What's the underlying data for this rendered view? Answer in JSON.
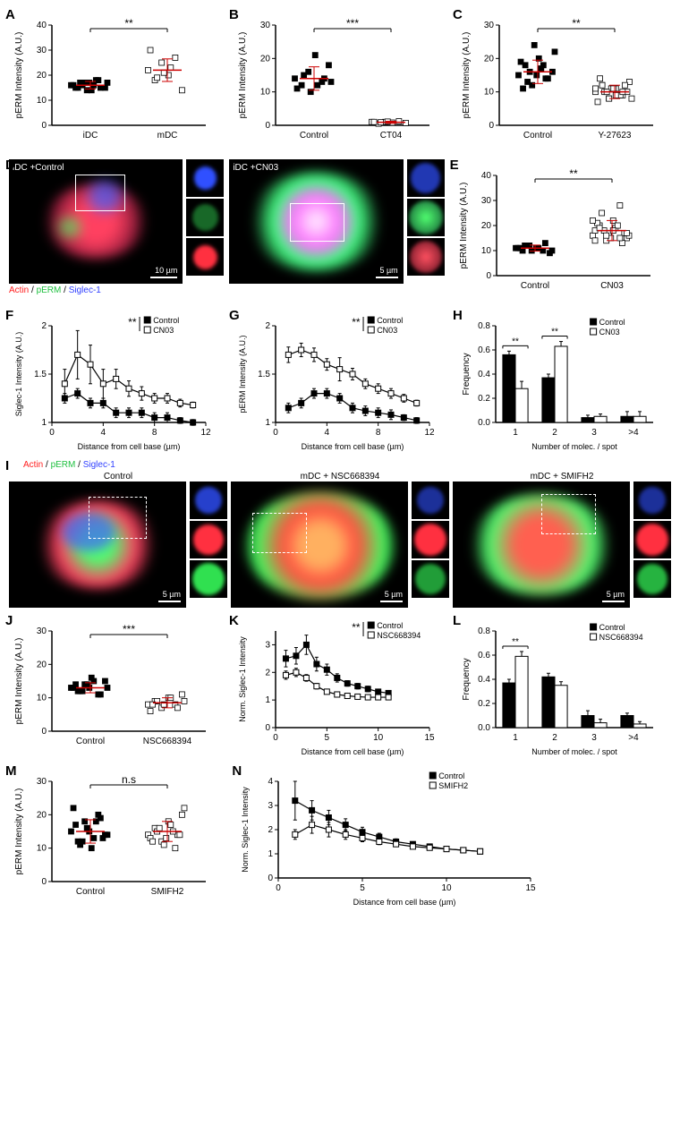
{
  "colors": {
    "actin": "#ff2020",
    "perm": "#20e040",
    "siglec": "#3040ff",
    "marker_filled": "#000000",
    "marker_open": "#ffffff",
    "errorbar": "#c00000",
    "axis": "#000000"
  },
  "panelA": {
    "label": "A",
    "ylabel": "pERM Intensity (A.U.)",
    "ylim": [
      0,
      40
    ],
    "ytick_step": 10,
    "sig": "**",
    "groups": [
      "iDC",
      "mDC"
    ],
    "data": [
      [
        16,
        15,
        17,
        14,
        18,
        15,
        16,
        17,
        14,
        16,
        15,
        17,
        15,
        16,
        17,
        18
      ],
      [
        22,
        18,
        25,
        20,
        27,
        14,
        30,
        19,
        21,
        23
      ]
    ],
    "means": [
      16,
      22
    ],
    "sds": [
      1.5,
      4.5
    ]
  },
  "panelB": {
    "label": "B",
    "ylabel": "pERM Intensity (A.U.)",
    "ylim": [
      0,
      30
    ],
    "ytick_step": 10,
    "sig": "***",
    "groups": [
      "Control",
      "CT04"
    ],
    "data": [
      [
        14,
        12,
        16,
        21,
        13,
        18,
        11,
        15,
        10,
        12,
        14,
        13
      ],
      [
        1,
        0.5,
        1,
        0.8,
        1.2,
        0.7,
        1,
        0.9,
        1.1
      ]
    ],
    "means": [
      14,
      0.9
    ],
    "sds": [
      3.5,
      0.3
    ]
  },
  "panelC": {
    "label": "C",
    "ylabel": "pERM Intensity (A.U.)",
    "ylim": [
      0,
      30
    ],
    "ytick_step": 10,
    "sig": "**",
    "groups": [
      "Control",
      "Y-27623"
    ],
    "data": [
      [
        15,
        18,
        12,
        20,
        14,
        16,
        19,
        13,
        24,
        17,
        14,
        22,
        11,
        16,
        15,
        18
      ],
      [
        10,
        12,
        8,
        11,
        9,
        13,
        7,
        10,
        11,
        9,
        12,
        8,
        14,
        10,
        11,
        9,
        10,
        11,
        12,
        8,
        9,
        10
      ]
    ],
    "means": [
      16,
      10
    ],
    "sds": [
      3.5,
      2
    ]
  },
  "panelD": {
    "label": "D",
    "channel_labels": [
      "Actin",
      "pERM",
      "Siglec-1"
    ],
    "images": [
      {
        "title": "iDC +Control",
        "scale": "10 µm"
      },
      {
        "title": "iDC +CN03",
        "scale": "5 µm"
      }
    ]
  },
  "panelE": {
    "label": "E",
    "ylabel": "pERM Intensity (A.U.)",
    "ylim": [
      0,
      40
    ],
    "ytick_step": 10,
    "sig": "**",
    "groups": [
      "Control",
      "CN03"
    ],
    "data": [
      [
        11,
        10,
        12,
        11,
        10,
        9,
        11,
        12,
        10,
        11,
        13,
        10,
        11,
        12
      ],
      [
        16,
        20,
        14,
        22,
        28,
        15,
        18,
        25,
        17,
        19,
        13,
        16,
        21,
        18,
        15,
        20,
        17,
        22,
        19,
        16,
        18,
        15,
        17,
        14
      ]
    ],
    "means": [
      11,
      18
    ],
    "sds": [
      1.2,
      4
    ]
  },
  "panelF": {
    "label": "F",
    "sig": "**",
    "ylabel": "Siglec-1 Intensity (A.U.)",
    "xlabel": "Distance from cell base (µm)",
    "ylim": [
      1.0,
      2.0
    ],
    "ytick_step": 0.5,
    "xlim": [
      0,
      12
    ],
    "xtick_step": 4,
    "series": [
      {
        "name": "Control",
        "fill": "#000",
        "x": [
          1,
          2,
          3,
          4,
          5,
          6,
          7,
          8,
          9,
          10,
          11
        ],
        "y": [
          1.25,
          1.3,
          1.2,
          1.2,
          1.1,
          1.1,
          1.1,
          1.05,
          1.05,
          1.02,
          1.0
        ],
        "err": [
          0.05,
          0.05,
          0.05,
          0.05,
          0.05,
          0.05,
          0.05,
          0.05,
          0.05,
          0.03,
          0.03
        ]
      },
      {
        "name": "CN03",
        "fill": "#fff",
        "x": [
          1,
          2,
          3,
          4,
          5,
          6,
          7,
          8,
          9,
          10,
          11
        ],
        "y": [
          1.4,
          1.7,
          1.6,
          1.4,
          1.45,
          1.35,
          1.3,
          1.25,
          1.25,
          1.2,
          1.18
        ],
        "err": [
          0.15,
          0.25,
          0.2,
          0.15,
          0.1,
          0.08,
          0.07,
          0.05,
          0.05,
          0.04,
          0.03
        ]
      }
    ]
  },
  "panelG": {
    "label": "G",
    "sig": "**",
    "ylabel": "pERM Intensity (A.U.)",
    "xlabel": "Distance from cell base (µm)",
    "ylim": [
      1.0,
      2.0
    ],
    "ytick_step": 0.5,
    "xlim": [
      0,
      12
    ],
    "xtick_step": 4,
    "series": [
      {
        "name": "Control",
        "fill": "#000",
        "x": [
          1,
          2,
          3,
          4,
          5,
          6,
          7,
          8,
          9,
          10,
          11
        ],
        "y": [
          1.15,
          1.2,
          1.3,
          1.3,
          1.25,
          1.15,
          1.12,
          1.1,
          1.08,
          1.05,
          1.02
        ],
        "err": [
          0.05,
          0.05,
          0.05,
          0.05,
          0.05,
          0.05,
          0.05,
          0.05,
          0.05,
          0.03,
          0.03
        ]
      },
      {
        "name": "CN03",
        "fill": "#fff",
        "x": [
          1,
          2,
          3,
          4,
          5,
          6,
          7,
          8,
          9,
          10,
          11
        ],
        "y": [
          1.7,
          1.75,
          1.7,
          1.6,
          1.55,
          1.5,
          1.4,
          1.35,
          1.3,
          1.25,
          1.2
        ],
        "err": [
          0.08,
          0.07,
          0.07,
          0.06,
          0.12,
          0.06,
          0.05,
          0.05,
          0.05,
          0.04,
          0.03
        ]
      }
    ]
  },
  "panelH": {
    "label": "H",
    "ylabel": "Frequency",
    "xlabel": "Number of molec. / spot",
    "ylim": [
      0,
      0.8
    ],
    "ytick_step": 0.2,
    "categories": [
      "1",
      "2",
      "3",
      ">4"
    ],
    "series": [
      {
        "name": "Control",
        "fill": "#000",
        "values": [
          0.56,
          0.37,
          0.04,
          0.05
        ],
        "err": [
          0.03,
          0.03,
          0.02,
          0.04
        ]
      },
      {
        "name": "CN03",
        "fill": "#fff",
        "values": [
          0.28,
          0.63,
          0.05,
          0.05
        ],
        "err": [
          0.06,
          0.04,
          0.02,
          0.04
        ]
      }
    ],
    "sigs": [
      "**",
      "**",
      "",
      ""
    ]
  },
  "panelI": {
    "label": "I",
    "channel_labels": [
      "Actin",
      "pERM",
      "Siglec-1"
    ],
    "images": [
      {
        "title": "Control",
        "scale": "5 µm"
      },
      {
        "title": "mDC + NSC668394",
        "scale": "5 µm"
      },
      {
        "title": "mDC + SMIFH2",
        "scale": "5 µm"
      }
    ]
  },
  "panelJ": {
    "label": "J",
    "ylabel": "pERM Intensity (A.U.)",
    "ylim": [
      0,
      30
    ],
    "ytick_step": 10,
    "sig": "***",
    "groups": [
      "Control",
      "NSC668394"
    ],
    "data": [
      [
        13,
        12,
        14,
        16,
        11,
        15,
        13,
        12,
        14,
        15,
        11,
        13,
        14,
        12,
        13
      ],
      [
        8,
        9,
        7,
        10,
        8,
        11,
        6,
        9,
        8,
        10,
        7,
        9,
        8
      ]
    ],
    "means": [
      13,
      8.5
    ],
    "sds": [
      1.5,
      1.5
    ]
  },
  "panelK": {
    "label": "K",
    "sig": "**",
    "ylabel": "Norm. Siglec-1 Intensity",
    "xlabel": "Distance from cell base (µm)",
    "ylim": [
      0,
      3.5
    ],
    "ytick_step": 1,
    "xlim": [
      0,
      15
    ],
    "xtick_step": 5,
    "series": [
      {
        "name": "Control",
        "fill": "#000",
        "x": [
          1,
          2,
          3,
          4,
          5,
          6,
          7,
          8,
          9,
          10,
          11
        ],
        "y": [
          2.5,
          2.6,
          3.0,
          2.3,
          2.1,
          1.8,
          1.6,
          1.5,
          1.4,
          1.3,
          1.25
        ],
        "err": [
          0.3,
          0.3,
          0.35,
          0.25,
          0.2,
          0.15,
          0.1,
          0.1,
          0.1,
          0.08,
          0.05
        ]
      },
      {
        "name": "NSC668394",
        "fill": "#fff",
        "x": [
          1,
          2,
          3,
          4,
          5,
          6,
          7,
          8,
          9,
          10,
          11
        ],
        "y": [
          1.9,
          2.0,
          1.8,
          1.5,
          1.3,
          1.2,
          1.15,
          1.12,
          1.1,
          1.1,
          1.1
        ],
        "err": [
          0.15,
          0.15,
          0.12,
          0.1,
          0.08,
          0.07,
          0.06,
          0.05,
          0.05,
          0.04,
          0.03
        ]
      }
    ]
  },
  "panelL": {
    "label": "L",
    "ylabel": "Frequency",
    "xlabel": "Number of molec. / spot",
    "ylim": [
      0,
      0.8
    ],
    "ytick_step": 0.2,
    "categories": [
      "1",
      "2",
      "3",
      ">4"
    ],
    "series": [
      {
        "name": "Control",
        "fill": "#000",
        "values": [
          0.37,
          0.42,
          0.1,
          0.1
        ],
        "err": [
          0.03,
          0.03,
          0.04,
          0.02
        ]
      },
      {
        "name": "NSC668394",
        "fill": "#fff",
        "values": [
          0.59,
          0.35,
          0.04,
          0.03
        ],
        "err": [
          0.04,
          0.03,
          0.03,
          0.02
        ]
      }
    ],
    "sigs": [
      "**",
      "",
      "",
      ""
    ]
  },
  "panelM": {
    "label": "M",
    "ylabel": "pERM Intensity (A.U.)",
    "ylim": [
      0,
      30
    ],
    "ytick_step": 10,
    "sig": "n.s",
    "groups": [
      "Control",
      "SMIFH2"
    ],
    "data": [
      [
        15,
        12,
        18,
        10,
        20,
        14,
        22,
        11,
        16,
        13,
        19,
        14,
        17,
        12,
        15,
        18,
        13
      ],
      [
        14,
        16,
        12,
        18,
        10,
        20,
        13,
        15,
        11,
        17,
        14,
        22,
        12,
        16,
        13,
        15,
        14
      ]
    ],
    "means": [
      15,
      15
    ],
    "sds": [
      3.5,
      3
    ]
  },
  "panelN": {
    "label": "N",
    "ylabel": "Norm. Siglec-1 Intensity",
    "xlabel": "Distance from cell base (µm)",
    "ylim": [
      0,
      4
    ],
    "ytick_step": 1,
    "xlim": [
      0,
      15
    ],
    "xtick_step": 5,
    "series": [
      {
        "name": "Control",
        "fill": "#000",
        "x": [
          1,
          2,
          3,
          4,
          5,
          6,
          7,
          8,
          9,
          10,
          11,
          12
        ],
        "y": [
          3.2,
          2.8,
          2.5,
          2.2,
          1.9,
          1.7,
          1.5,
          1.4,
          1.3,
          1.2,
          1.15,
          1.1
        ],
        "err": [
          0.8,
          0.4,
          0.3,
          0.25,
          0.2,
          0.15,
          0.12,
          0.1,
          0.08,
          0.07,
          0.06,
          0.05
        ]
      },
      {
        "name": "SMIFH2",
        "fill": "#fff",
        "x": [
          1,
          2,
          3,
          4,
          5,
          6,
          7,
          8,
          9,
          10,
          11,
          12
        ],
        "y": [
          1.8,
          2.2,
          2.0,
          1.8,
          1.65,
          1.5,
          1.4,
          1.3,
          1.25,
          1.2,
          1.15,
          1.1
        ],
        "err": [
          0.2,
          0.35,
          0.3,
          0.2,
          0.15,
          0.12,
          0.1,
          0.08,
          0.07,
          0.06,
          0.05,
          0.04
        ]
      }
    ]
  }
}
